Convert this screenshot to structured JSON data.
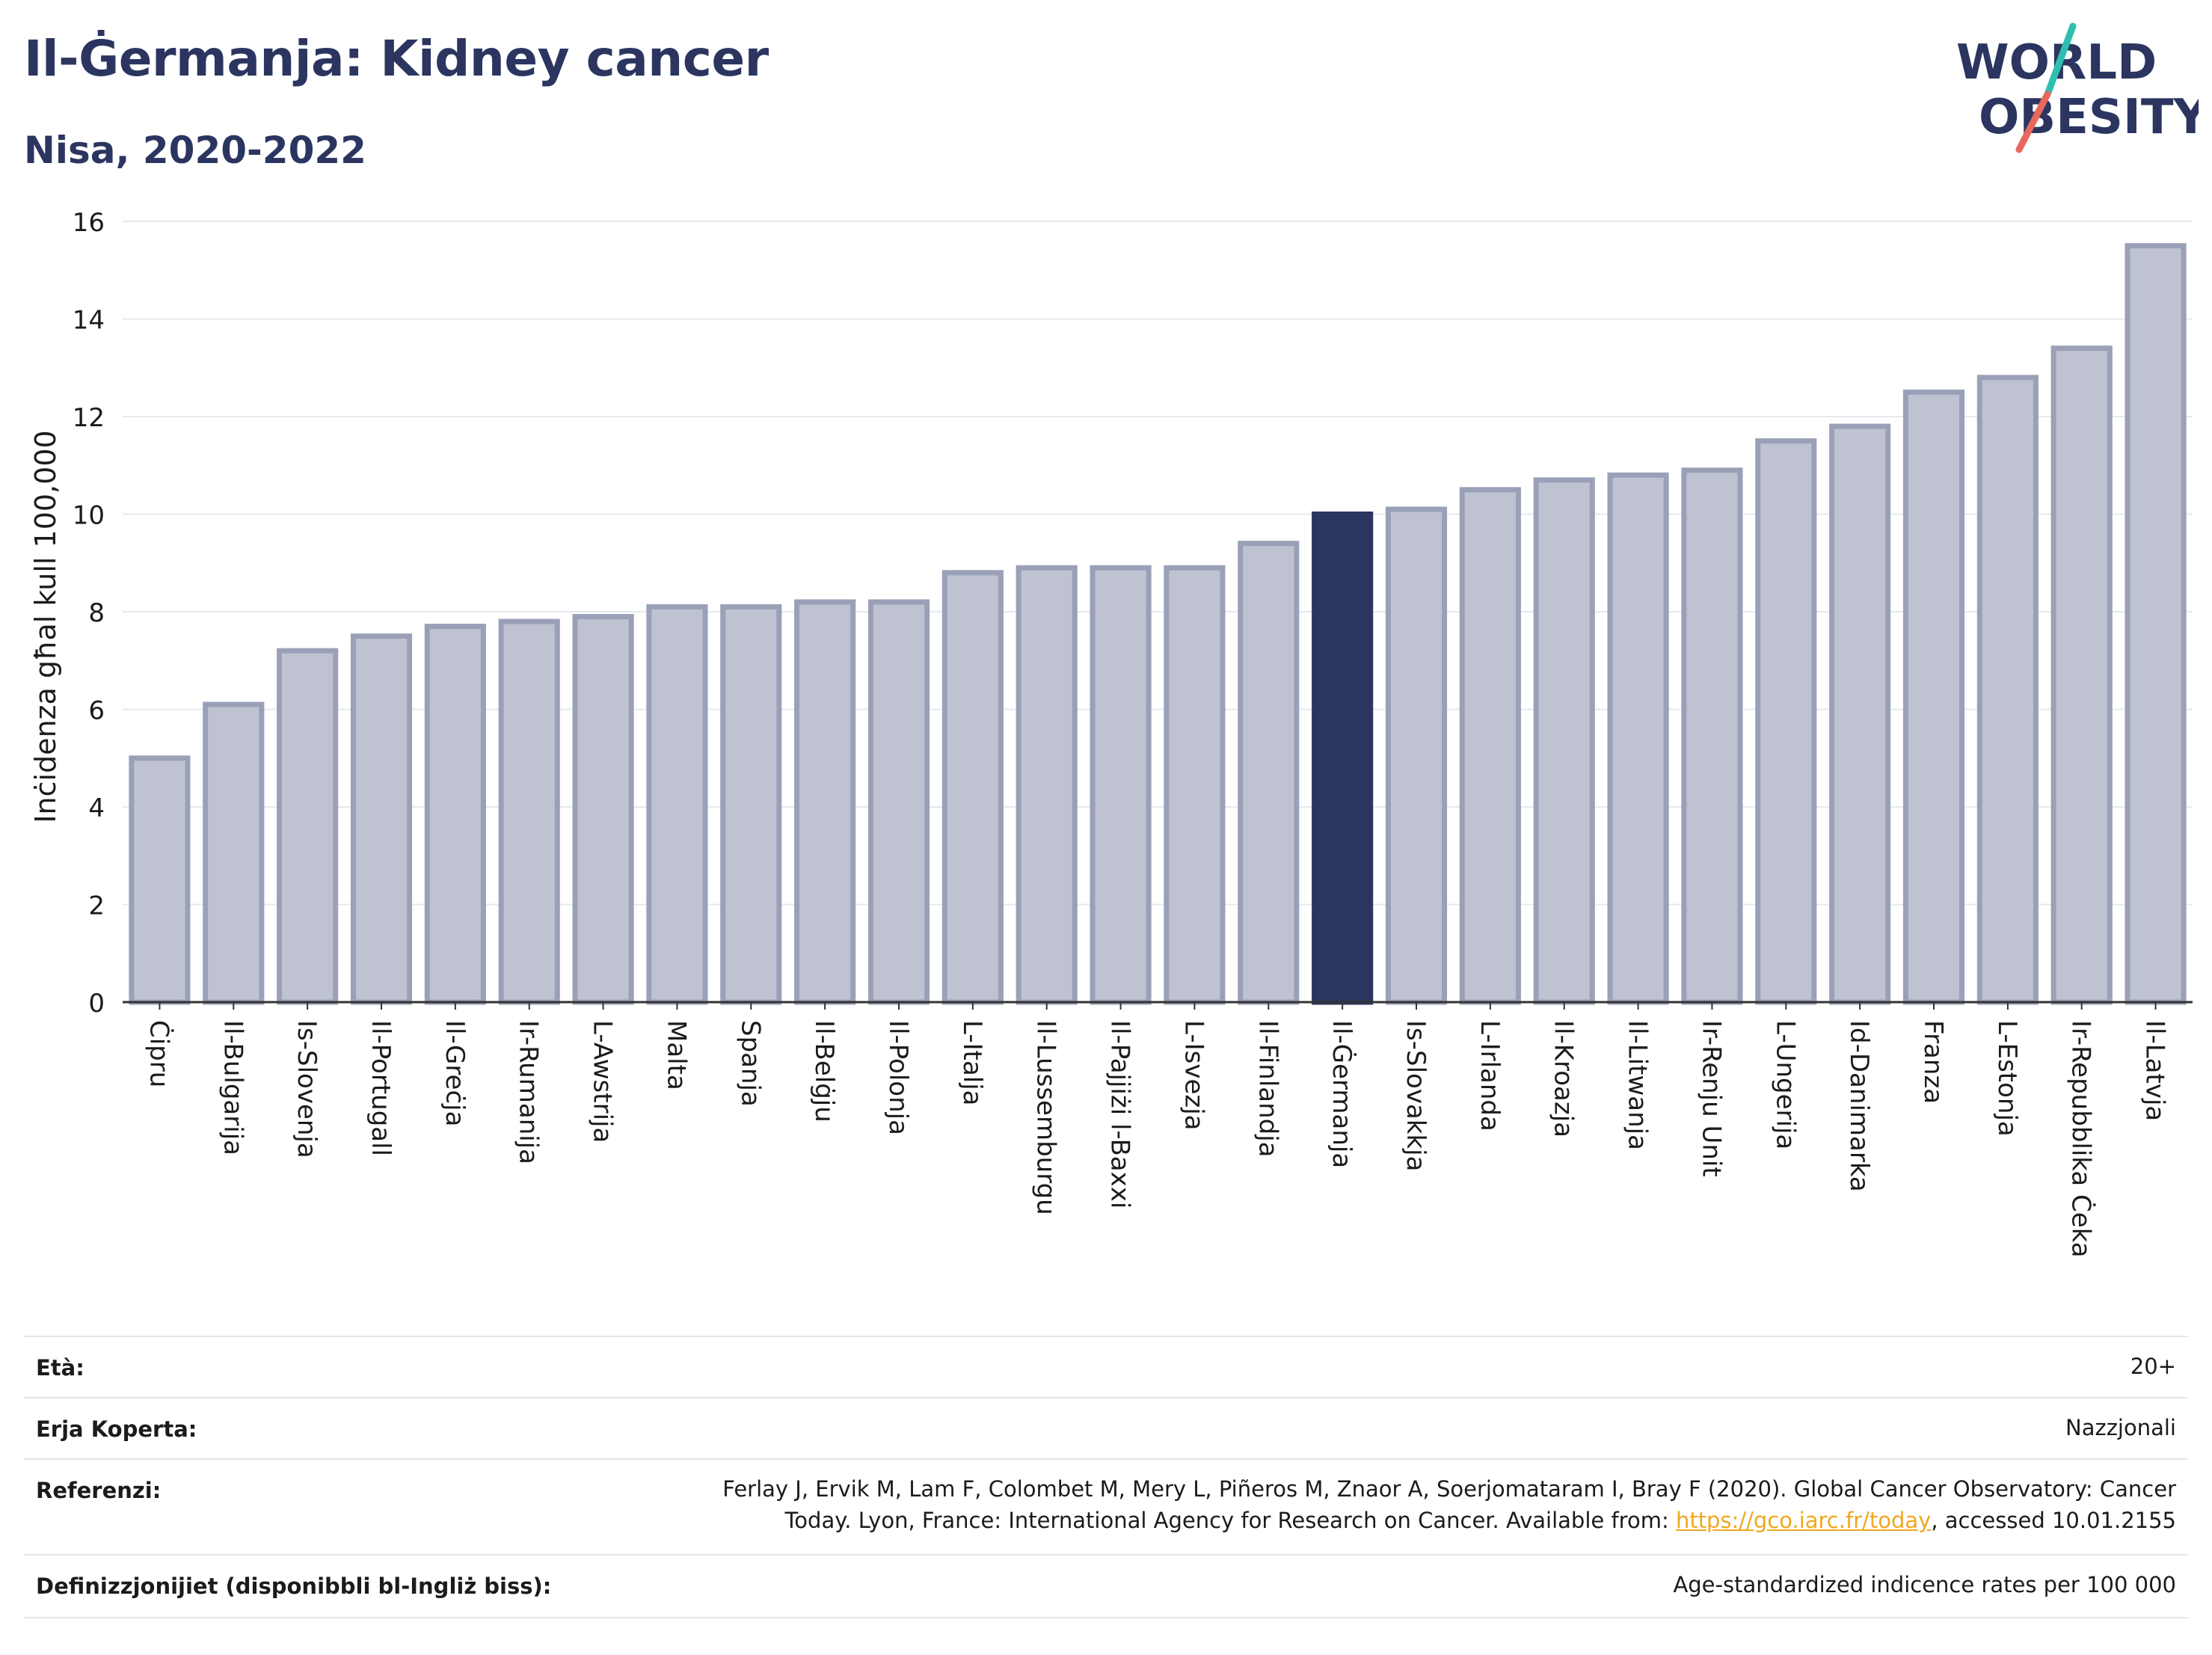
{
  "header": {
    "title": "Il-Ġermanja: Kidney cancer",
    "subtitle": "Nisa, 2020-2022"
  },
  "logo": {
    "line1": "WORLD",
    "line2": "OBESITY",
    "colors": {
      "text": "#2b3560",
      "slash_top": "#2fbfb0",
      "slash_bottom": "#e8675c"
    }
  },
  "chart_data": {
    "type": "bar",
    "ylabel": "Inċidenza għal kull 100,000",
    "xlabel": "",
    "ylim": [
      0,
      16
    ],
    "yticks": [
      0,
      2,
      4,
      6,
      8,
      10,
      12,
      14,
      16
    ],
    "grid": true,
    "highlight": "Il-Ġermanja",
    "colors": {
      "bar": "#bfc3d1",
      "bar_border": "#9aa0b7",
      "highlight": "#2b3560"
    },
    "categories": [
      "Ċipru",
      "Il-Bulgarija",
      "Is-Slovenja",
      "Il-Portugall",
      "Il-Greċja",
      "Ir-Rumanija",
      "L-Awstrija",
      "Malta",
      "Spanja",
      "Il-Belġju",
      "Il-Polonja",
      "L-Italja",
      "Il-Lussemburgu",
      "Il-Pajjiżi l-Baxxi",
      "L-Isvezja",
      "Il-Finlandja",
      "Il-Ġermanja",
      "Is-Slovakkja",
      "L-Irlanda",
      "Il-Kroazja",
      "Il-Litwanja",
      "Ir-Renju Unit",
      "L-Ungerija",
      "Id-Danimarka",
      "Franza",
      "L-Estonja",
      "Ir-Repubblika Ċeka",
      "Il-Latvja"
    ],
    "values": [
      5.0,
      6.1,
      7.2,
      7.5,
      7.7,
      7.8,
      7.9,
      8.1,
      8.1,
      8.2,
      8.2,
      8.8,
      8.9,
      8.9,
      8.9,
      9.4,
      10.0,
      10.1,
      10.5,
      10.7,
      10.8,
      10.9,
      11.5,
      11.8,
      12.5,
      12.8,
      13.4,
      15.5
    ]
  },
  "info": {
    "age_label": "Età:",
    "age_value": "20+",
    "coverage_label": "Erja Koperta:",
    "coverage_value": "Nazzjonali",
    "references_label": "Referenzi:",
    "references_line1": "Ferlay J, Ervik M, Lam F, Colombet M, Mery L, Piñeros M, Znaor A, Soerjomataram I, Bray F (2020). Global Cancer Observatory: Cancer",
    "references_line2_pre": "Today. Lyon, France: International Agency for Research on Cancer. Available from: ",
    "references_link": "https://gco.iarc.fr/today",
    "references_line2_post": ", accessed 10.01.2155",
    "definitions_label": "Definizzjonijiet (disponibbli bl-Ingliż biss):",
    "definitions_value": "Age-standardized indicence rates per 100 000"
  }
}
